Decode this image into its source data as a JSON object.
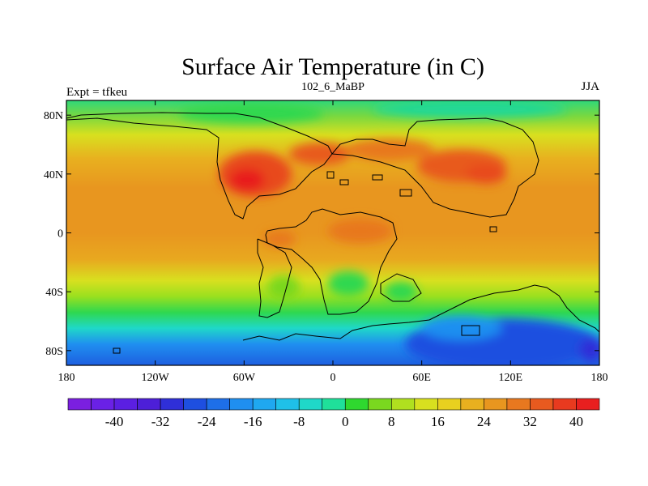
{
  "title": "Surface Air Temperature (in C)",
  "subtitle_center": "102_6_MaBP",
  "subtitle_left": "Expt = tfkeu",
  "subtitle_right": "JJA",
  "map": {
    "projection": "cylindrical-equidistant",
    "lon_range": [
      -180,
      180
    ],
    "lat_range": [
      -90,
      90
    ],
    "x_ticks": [
      {
        "lon": -180,
        "label": "180"
      },
      {
        "lon": -120,
        "label": "120W"
      },
      {
        "lon": -60,
        "label": "60W"
      },
      {
        "lon": 0,
        "label": "0"
      },
      {
        "lon": 60,
        "label": "60E"
      },
      {
        "lon": 120,
        "label": "120E"
      },
      {
        "lon": 180,
        "label": "180"
      }
    ],
    "y_ticks": [
      {
        "lat": 80,
        "label": "80N"
      },
      {
        "lat": 40,
        "label": "40N"
      },
      {
        "lat": 0,
        "label": "0"
      },
      {
        "lat": -40,
        "label": "40S"
      },
      {
        "lat": -80,
        "label": "80S"
      }
    ]
  },
  "colorbar": {
    "colors": [
      "#7b1fe0",
      "#6a21e6",
      "#5b1fe2",
      "#4d1fd8",
      "#2f2fd8",
      "#1e4fe0",
      "#1e6fe8",
      "#1f8ff0",
      "#1fa8f0",
      "#1fc0e8",
      "#1fd8c8",
      "#1fe09a",
      "#2fd82f",
      "#7ad81f",
      "#b0e01f",
      "#d8e01f",
      "#e8d01f",
      "#e8b01f",
      "#e8961f",
      "#e8781f",
      "#e85a1f",
      "#e83a1f",
      "#e81f1f"
    ],
    "tick_labels": [
      {
        "after_index": 2,
        "label": "-40"
      },
      {
        "after_index": 4,
        "label": "-32"
      },
      {
        "after_index": 6,
        "label": "-24"
      },
      {
        "after_index": 8,
        "label": "-16"
      },
      {
        "after_index": 10,
        "label": "-8"
      },
      {
        "after_index": 12,
        "label": "0"
      },
      {
        "after_index": 14,
        "label": "8"
      },
      {
        "after_index": 16,
        "label": "16"
      },
      {
        "after_index": 18,
        "label": "24"
      },
      {
        "after_index": 20,
        "label": "32"
      },
      {
        "after_index": 22,
        "label": "40"
      }
    ]
  }
}
